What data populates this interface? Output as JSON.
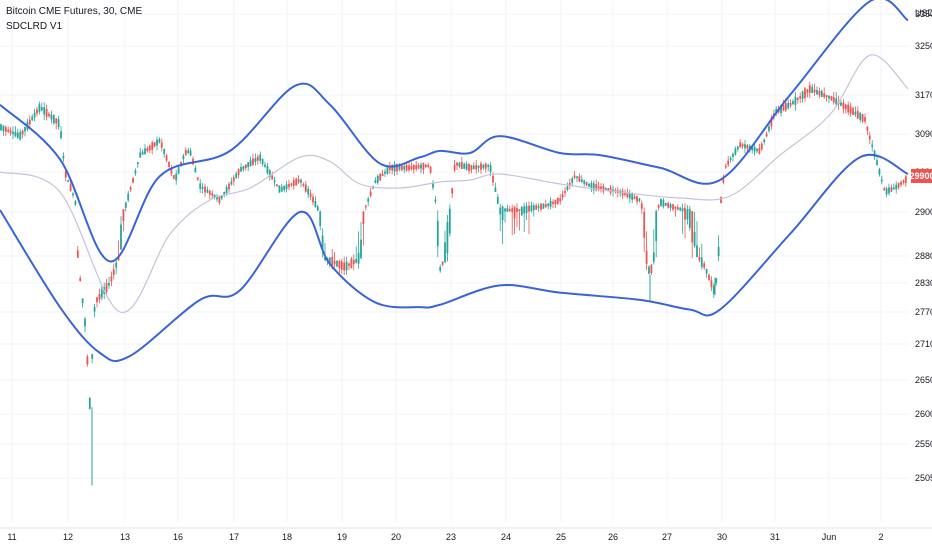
{
  "chart_data": {
    "type": "candlestick",
    "title": "Bitcoin CME Futures, 30, CME",
    "indicator": "SDCLRD V1",
    "y_unit": "USD",
    "ylim": [
      24850,
      34050
    ],
    "yticks": [
      33500,
      32500,
      31700,
      30900,
      30000,
      29000,
      28800,
      28300,
      27700,
      27100,
      26500,
      26000,
      25500,
      25050
    ],
    "xticks": [
      "11",
      "12",
      "13",
      "16",
      "17",
      "18",
      "19",
      "20",
      "23",
      "24",
      "25",
      "26",
      "27",
      "30",
      "31",
      "Jun",
      "2"
    ],
    "last_price": 29900,
    "colors": {
      "up": "#26a69a",
      "down": "#ef5350",
      "band": "#3a63d6",
      "mid": "#c8c2d8",
      "last_label_bg": "#ef5350",
      "grid": "#f0f3fa"
    },
    "series": [
      {
        "name": "Upper",
        "points": [
          [
            0,
            31500
          ],
          [
            60,
            30300
          ],
          [
            110,
            28700
          ],
          [
            160,
            29900
          ],
          [
            230,
            30500
          ],
          [
            295,
            31850
          ],
          [
            330,
            31500
          ],
          [
            380,
            30200
          ],
          [
            420,
            30350
          ],
          [
            440,
            30500
          ],
          [
            470,
            30450
          ],
          [
            500,
            30850
          ],
          [
            560,
            30450
          ],
          [
            600,
            30400
          ],
          [
            660,
            30100
          ],
          [
            720,
            29800
          ],
          [
            790,
            31700
          ],
          [
            870,
            33900
          ],
          [
            908,
            33300
          ]
        ]
      },
      {
        "name": "Middle",
        "points": [
          [
            0,
            30000
          ],
          [
            60,
            29500
          ],
          [
            120,
            27700
          ],
          [
            170,
            28900
          ],
          [
            210,
            29300
          ],
          [
            250,
            29600
          ],
          [
            300,
            30350
          ],
          [
            330,
            30250
          ],
          [
            360,
            29700
          ],
          [
            400,
            29600
          ],
          [
            440,
            29750
          ],
          [
            470,
            29800
          ],
          [
            500,
            29950
          ],
          [
            560,
            29700
          ],
          [
            620,
            29500
          ],
          [
            680,
            29350
          ],
          [
            730,
            29400
          ],
          [
            780,
            30400
          ],
          [
            830,
            31300
          ],
          [
            870,
            32350
          ],
          [
            908,
            31800
          ]
        ]
      },
      {
        "name": "Lower",
        "points": [
          [
            0,
            29050
          ],
          [
            60,
            27800
          ],
          [
            100,
            26950
          ],
          [
            130,
            26900
          ],
          [
            200,
            27950
          ],
          [
            240,
            28150
          ],
          [
            300,
            29000
          ],
          [
            330,
            28650
          ],
          [
            375,
            27900
          ],
          [
            420,
            27800
          ],
          [
            440,
            27850
          ],
          [
            500,
            28250
          ],
          [
            560,
            28100
          ],
          [
            640,
            27950
          ],
          [
            690,
            27750
          ],
          [
            720,
            27750
          ],
          [
            790,
            28900
          ],
          [
            860,
            30350
          ],
          [
            908,
            29950
          ]
        ]
      }
    ],
    "candles_note": ""
  }
}
